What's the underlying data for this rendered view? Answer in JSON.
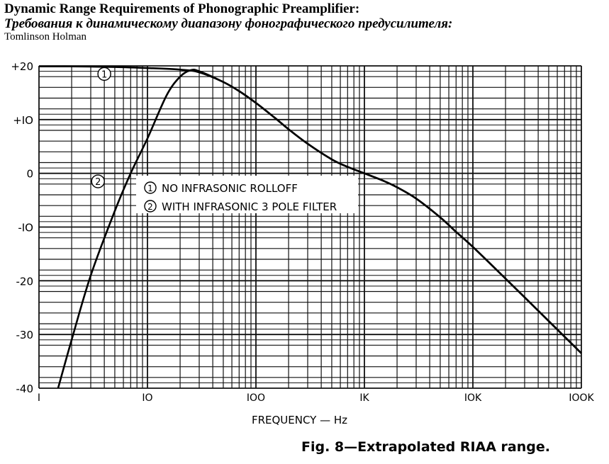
{
  "title": "Dynamic Range Requirements of Phonographic Preamplifier:",
  "title_ru": "Требования к динамическому диапазону фонографического предусилителя:",
  "author": "Tomlinson Holman",
  "caption": "Fig. 8—Extrapolated RIAA range.",
  "chart_data": {
    "type": "line",
    "xscale": "log",
    "xlabel": "FREQUENCY — Hz",
    "ylabel": "",
    "xlim": [
      1,
      100000
    ],
    "ylim": [
      -40,
      20
    ],
    "grid": true,
    "x_ticks": [
      {
        "v": 1,
        "label": "I"
      },
      {
        "v": 10,
        "label": "IO"
      },
      {
        "v": 100,
        "label": "IOO"
      },
      {
        "v": 1000,
        "label": "IK"
      },
      {
        "v": 10000,
        "label": "IOK"
      },
      {
        "v": 100000,
        "label": "IOOK"
      }
    ],
    "y_ticks": [
      {
        "v": 20,
        "label": "+20"
      },
      {
        "v": 10,
        "label": "+IO"
      },
      {
        "v": 0,
        "label": "0"
      },
      {
        "v": -10,
        "label": "-IO"
      },
      {
        "v": -20,
        "label": "-20"
      },
      {
        "v": -30,
        "label": "-30"
      },
      {
        "v": -40,
        "label": "-40"
      }
    ],
    "legend": {
      "placement": "center-left",
      "entries": [
        {
          "marker": "1",
          "label": "NO INFRASONIC ROLLOFF"
        },
        {
          "marker": "2",
          "label": "WITH INFRASONIC 3 POLE FILTER"
        }
      ]
    },
    "series": [
      {
        "name": "1",
        "label": "NO INFRASONIC ROLLOFF",
        "x": [
          1,
          2,
          5,
          10,
          20,
          30,
          50,
          70,
          100,
          150,
          200,
          300,
          500,
          700,
          1000,
          1500,
          2000,
          3000,
          5000,
          7000,
          10000,
          20000,
          50000,
          100000
        ],
        "y": [
          19.9,
          19.9,
          19.8,
          19.6,
          19.3,
          18.8,
          17.0,
          15.3,
          13.1,
          10.3,
          8.2,
          5.5,
          2.6,
          1.2,
          0,
          -1.4,
          -2.6,
          -4.7,
          -8.2,
          -10.9,
          -13.7,
          -19.6,
          -27.5,
          -33.5
        ]
      },
      {
        "name": "2",
        "label": "WITH INFRASONIC 3 POLE FILTER",
        "x": [
          1.5,
          2,
          3,
          5,
          7,
          10,
          15,
          20,
          25,
          30,
          50,
          70,
          100,
          150,
          200,
          300,
          500,
          700,
          1000,
          1500,
          2000,
          3000,
          5000,
          7000,
          10000,
          20000,
          50000,
          100000
        ],
        "y": [
          -40,
          -31,
          -19,
          -7,
          0,
          6.5,
          14.5,
          18,
          19.2,
          19.0,
          17.0,
          15.3,
          13.1,
          10.3,
          8.2,
          5.5,
          2.6,
          1.2,
          0,
          -1.4,
          -2.6,
          -4.7,
          -8.2,
          -10.9,
          -13.7,
          -19.6,
          -27.5,
          -33.5
        ]
      }
    ],
    "annotations": [
      {
        "text": "1",
        "at": [
          4,
          18.5
        ]
      },
      {
        "text": "2",
        "at": [
          3.5,
          -1.5
        ]
      }
    ]
  }
}
